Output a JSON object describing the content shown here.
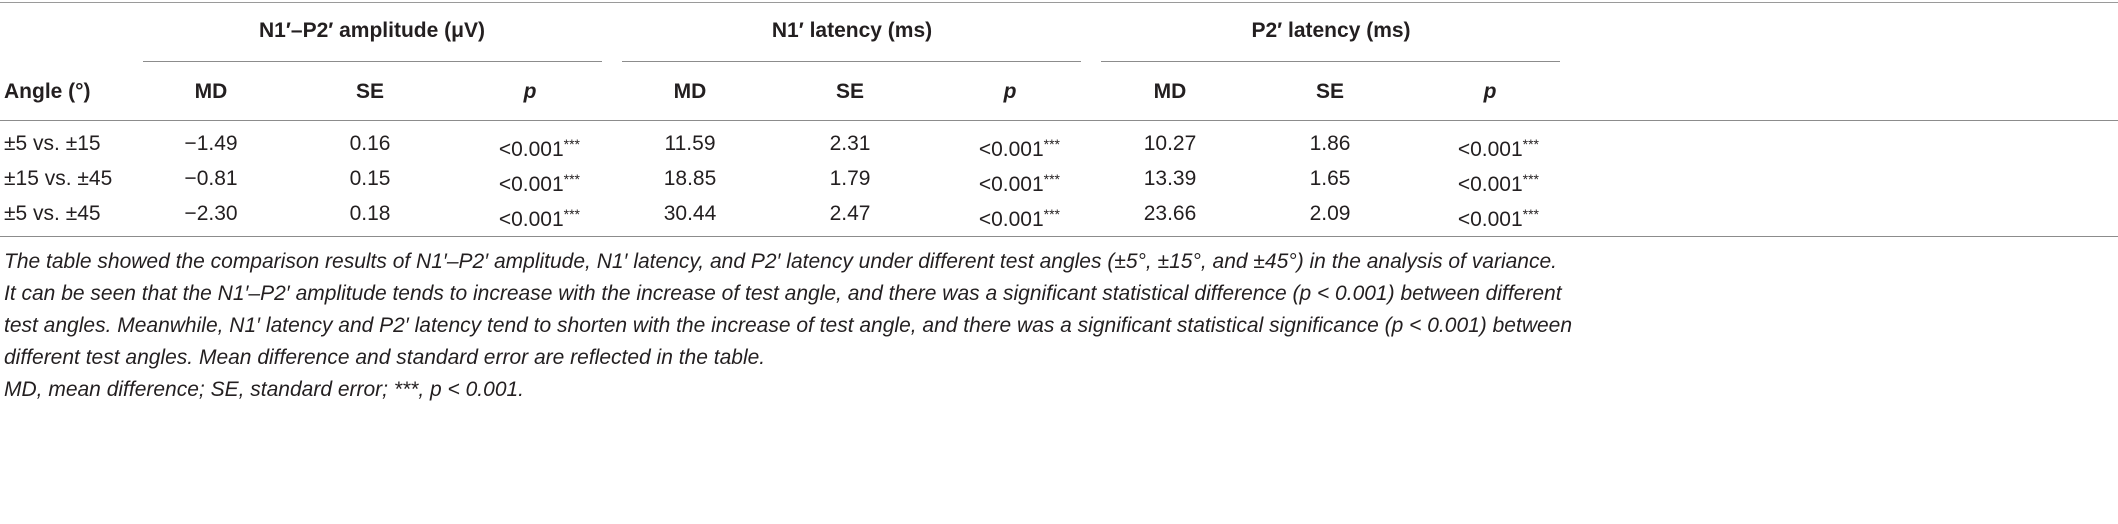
{
  "table": {
    "groups": [
      {
        "label": "N1′–P2′ amplitude (μV)"
      },
      {
        "label": "N1′ latency (ms)"
      },
      {
        "label": "P2′ latency (ms)"
      }
    ],
    "row_header": "Angle (°)",
    "sub_headers": [
      "MD",
      "SE",
      "p"
    ],
    "rows": [
      {
        "angle": "±5 vs. ±15",
        "amp": {
          "md": "−1.49",
          "se": "0.16",
          "p": "<0.001",
          "sig": "***"
        },
        "n1": {
          "md": "11.59",
          "se": "2.31",
          "p": "<0.001",
          "sig": "***"
        },
        "p2": {
          "md": "10.27",
          "se": "1.86",
          "p": "<0.001",
          "sig": "***"
        }
      },
      {
        "angle": "±15 vs. ±45",
        "amp": {
          "md": "−0.81",
          "se": "0.15",
          "p": "<0.001",
          "sig": "***"
        },
        "n1": {
          "md": "18.85",
          "se": "1.79",
          "p": "<0.001",
          "sig": "***"
        },
        "p2": {
          "md": "13.39",
          "se": "1.65",
          "p": "<0.001",
          "sig": "***"
        }
      },
      {
        "angle": "±5 vs. ±45",
        "amp": {
          "md": "−2.30",
          "se": "0.18",
          "p": "<0.001",
          "sig": "***"
        },
        "n1": {
          "md": "30.44",
          "se": "2.47",
          "p": "<0.001",
          "sig": "***"
        },
        "p2": {
          "md": "23.66",
          "se": "2.09",
          "p": "<0.001",
          "sig": "***"
        }
      }
    ]
  },
  "notes": {
    "line1": "The table showed the comparison results of N1′–P2′ amplitude, N1′ latency, and P2′ latency under different test angles (±5°, ±15°, and ±45°) in the analysis of variance.",
    "line2": "It can be seen that the N1′–P2′ amplitude tends to increase with the increase of test angle, and there was a significant statistical difference (p < 0.001) between different",
    "line3": "test angles. Meanwhile, N1′ latency and P2′ latency tend to shorten with the increase of test angle, and there was a significant statistical significance (p < 0.001) between",
    "line4": "different test angles. Mean difference and standard error are reflected in the table.",
    "line5": "MD, mean difference; SE, standard error; ***, p < 0.001."
  }
}
